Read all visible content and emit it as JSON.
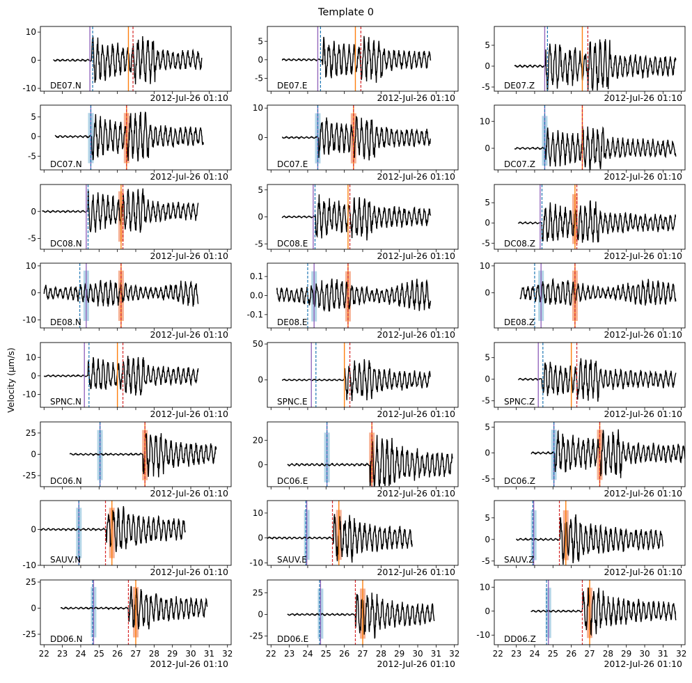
{
  "figure_title": "Template 0",
  "y_axis_label": "Velocity (μm/s)",
  "time_annotation": "2012-Jul-26 01:10",
  "colors": {
    "trace": "#000000",
    "p_pick": "#9467bd",
    "s_pick": "#ff7f0e",
    "p_detect": "#1f77b4",
    "s_detect": "#d62728",
    "p_window": "#a6cee3",
    "s_window": "#f4a582"
  },
  "chart_data": {
    "type": "line",
    "layout": "grid 8 rows x 3 columns of seismogram panels",
    "x_ticks": [
      "22",
      "23",
      "24",
      "25",
      "26",
      "27",
      "28",
      "29",
      "30",
      "31",
      "32"
    ],
    "x_range": [
      21.8,
      32.2
    ],
    "x_tick_labels_shown_on": "bottom row",
    "panels": [
      {
        "station": "DE07.N",
        "ylim": [
          -11,
          12
        ],
        "yticks": [
          "10",
          "0",
          "-10"
        ],
        "ytick_values": [
          10,
          0,
          -10
        ],
        "trace_start": 22.5,
        "trace_end": 30.6,
        "onset": 24.6,
        "amp": 9,
        "p_pick": 24.5,
        "p_det": 24.65,
        "s_pick": 26.6,
        "s_det": 26.85,
        "p_window": false,
        "s_window": false
      },
      {
        "station": "DE07.E",
        "ylim": [
          -8.5,
          9
        ],
        "yticks": [
          "5",
          "0",
          "-5"
        ],
        "ytick_values": [
          5,
          0,
          -5
        ],
        "trace_start": 22.6,
        "trace_end": 30.7,
        "onset": 24.8,
        "amp": 6.5,
        "p_pick": 24.55,
        "p_det": 24.7,
        "s_pick": 26.6,
        "s_det": 26.9,
        "p_window": false,
        "s_window": false
      },
      {
        "station": "DE07.Z",
        "ylim": [
          -6,
          9.5
        ],
        "yticks": [
          "5",
          "0",
          "-5"
        ],
        "ytick_values": [
          5,
          0,
          -5
        ],
        "trace_start": 22.9,
        "trace_end": 31.7,
        "onset": 24.6,
        "amp": 7,
        "p_pick": 24.55,
        "p_det": 24.7,
        "s_pick": 26.6,
        "s_det": 26.9,
        "p_window": false,
        "s_window": false
      },
      {
        "station": "DC07.N",
        "ylim": [
          -8.5,
          8
        ],
        "yticks": [
          "5",
          "0",
          "-5"
        ],
        "ytick_values": [
          5,
          0,
          -5
        ],
        "trace_start": 22.6,
        "trace_end": 30.7,
        "onset": 24.6,
        "amp": 6.5,
        "p_pick": 24.55,
        "p_det": 24.55,
        "s_pick": 26.5,
        "s_det": 26.5,
        "p_window": true,
        "s_window": true
      },
      {
        "station": "DC07.E",
        "ylim": [
          -11,
          11
        ],
        "yticks": [
          "10",
          "0"
        ],
        "ytick_values": [
          10,
          0
        ],
        "trace_start": 22.6,
        "trace_end": 30.7,
        "onset": 24.6,
        "amp": 8,
        "p_pick": 24.55,
        "p_det": 24.55,
        "s_pick": 26.5,
        "s_det": 26.5,
        "p_window": true,
        "s_window": true
      },
      {
        "station": "DC07.Z",
        "ylim": [
          -8,
          16
        ],
        "yticks": [
          "10",
          "0"
        ],
        "ytick_values": [
          10,
          0
        ],
        "trace_start": 22.9,
        "trace_end": 31.7,
        "onset": 24.6,
        "amp": 9,
        "p_pick": 24.55,
        "p_det": 24.55,
        "s_pick": 26.6,
        "s_det": 26.6,
        "p_window": true,
        "s_window": false
      },
      {
        "station": "DC08.N",
        "ylim": [
          -7,
          5
        ],
        "yticks": [
          "0",
          "-5"
        ],
        "ytick_values": [
          0,
          -5
        ],
        "trace_start": 21.9,
        "trace_end": 30.4,
        "onset": 24.4,
        "amp": 4.5,
        "p_pick": 24.3,
        "p_det": 24.4,
        "s_pick": 26.2,
        "s_det": 26.3,
        "p_window": false,
        "s_window": true
      },
      {
        "station": "DC08.E",
        "ylim": [
          -6,
          6
        ],
        "yticks": [
          "5",
          "0",
          "-5"
        ],
        "ytick_values": [
          5,
          0,
          -5
        ],
        "trace_start": 22.6,
        "trace_end": 30.7,
        "onset": 24.4,
        "amp": 4.5,
        "p_pick": 24.3,
        "p_det": 24.4,
        "s_pick": 26.2,
        "s_det": 26.3,
        "p_window": false,
        "s_window": false
      },
      {
        "station": "DC08.Z",
        "ylim": [
          -6.5,
          9.5
        ],
        "yticks": [
          "5",
          "0",
          "-5"
        ],
        "ytick_values": [
          5,
          0,
          -5
        ],
        "trace_start": 23.1,
        "trace_end": 31.7,
        "onset": 24.4,
        "amp": 6,
        "p_pick": 24.3,
        "p_det": 24.4,
        "s_pick": 26.2,
        "s_det": 26.3,
        "p_window": false,
        "s_window": true
      },
      {
        "station": "DE08.N",
        "ylim": [
          -13,
          11
        ],
        "yticks": [
          "10",
          "0",
          "-10"
        ],
        "ytick_values": [
          10,
          0,
          -10
        ],
        "trace_start": 22.0,
        "trace_end": 30.4,
        "onset": 22.0,
        "amp": 7,
        "p_pick": 24.3,
        "p_det": 23.95,
        "s_pick": 26.2,
        "s_det": 26.2,
        "p_window": true,
        "s_window": true
      },
      {
        "station": "DE08.E",
        "ylim": [
          -0.17,
          0.17
        ],
        "yticks": [
          "0.1",
          "0.0",
          "-0.1"
        ],
        "ytick_values": [
          0.1,
          0,
          -0.1
        ],
        "trace_start": 22.3,
        "trace_end": 30.7,
        "onset": 22.3,
        "amp": 0.12,
        "p_pick": 24.35,
        "p_det": 24.0,
        "s_pick": 26.2,
        "s_det": 26.2,
        "p_window": true,
        "s_window": true
      },
      {
        "station": "DE08.Z",
        "ylim": [
          -13,
          11
        ],
        "yticks": [
          "10",
          "0"
        ],
        "ytick_values": [
          10,
          0
        ],
        "trace_start": 23.2,
        "trace_end": 31.7,
        "onset": 23.2,
        "amp": 7,
        "p_pick": 24.35,
        "p_det": 24.0,
        "s_pick": 26.2,
        "s_det": 26.2,
        "p_window": true,
        "s_window": true
      },
      {
        "station": "SPNC.N",
        "ylim": [
          -17,
          18
        ],
        "yticks": [
          "10",
          "0",
          "-10"
        ],
        "ytick_values": [
          10,
          0,
          -10
        ],
        "trace_start": 22.0,
        "trace_end": 30.4,
        "onset": 24.4,
        "amp": 12,
        "p_pick": 24.2,
        "p_det": 24.45,
        "s_pick": 26.0,
        "s_det": 26.3,
        "p_window": false,
        "s_window": false
      },
      {
        "station": "SPNC.E",
        "ylim": [
          -38,
          52
        ],
        "yticks": [
          "50",
          "0"
        ],
        "ytick_values": [
          50,
          0
        ],
        "trace_start": 22.6,
        "trace_end": 30.7,
        "onset": 26.0,
        "amp": 30,
        "p_pick": 24.2,
        "p_det": 24.45,
        "s_pick": 26.0,
        "s_det": 26.3,
        "p_window": false,
        "s_window": false
      },
      {
        "station": "SPNC.Z",
        "ylim": [
          -6.5,
          8.5
        ],
        "yticks": [
          "5",
          "0",
          "-5"
        ],
        "ytick_values": [
          5,
          0,
          -5
        ],
        "trace_start": 23.1,
        "trace_end": 31.7,
        "onset": 24.4,
        "amp": 5.5,
        "p_pick": 24.2,
        "p_det": 24.45,
        "s_pick": 26.0,
        "s_det": 26.3,
        "p_window": false,
        "s_window": false
      },
      {
        "station": "DC06.N",
        "ylim": [
          -38,
          38
        ],
        "yticks": [
          "25",
          "0",
          "-25"
        ],
        "ytick_values": [
          25,
          0,
          -25
        ],
        "trace_start": 23.4,
        "trace_end": 31.4,
        "onset": 27.4,
        "amp": 28,
        "p_pick": 25.05,
        "p_det": 25.05,
        "s_pick": 27.5,
        "s_det": 27.5,
        "p_window": true,
        "s_window": true
      },
      {
        "station": "DC06.E",
        "ylim": [
          -18,
          35
        ],
        "yticks": [
          "20",
          "0"
        ],
        "ytick_values": [
          20,
          0
        ],
        "trace_start": 22.9,
        "trace_end": 31.9,
        "onset": 27.4,
        "amp": 25,
        "p_pick": 25.05,
        "p_det": 25.05,
        "s_pick": 27.5,
        "s_det": 27.5,
        "p_window": true,
        "s_window": true
      },
      {
        "station": "DC06.Z",
        "ylim": [
          -6.5,
          6
        ],
        "yticks": [
          "5",
          "0",
          "-5"
        ],
        "ytick_values": [
          5,
          0,
          -5
        ],
        "trace_start": 23.8,
        "trace_end": 32.2,
        "onset": 25.1,
        "amp": 5,
        "p_pick": 25.05,
        "p_det": 25.05,
        "s_pick": 27.55,
        "s_det": 27.55,
        "p_window": true,
        "s_window": true
      },
      {
        "station": "SAUV.N",
        "ylim": [
          -10,
          8
        ],
        "yticks": [
          "0",
          "-10"
        ],
        "ytick_values": [
          0,
          -10
        ],
        "trace_start": 21.8,
        "trace_end": 29.7,
        "onset": 25.4,
        "amp": 7,
        "p_pick": 23.9,
        "p_det": 23.9,
        "s_pick": 25.7,
        "s_det": 25.35,
        "p_window": true,
        "s_window": true
      },
      {
        "station": "SAUV.E",
        "ylim": [
          -11,
          15
        ],
        "yticks": [
          "10",
          "0",
          "-10"
        ],
        "ytick_values": [
          10,
          0,
          -10
        ],
        "trace_start": 21.8,
        "trace_end": 29.7,
        "onset": 25.4,
        "amp": 10,
        "p_pick": 23.95,
        "p_det": 23.9,
        "s_pick": 25.7,
        "s_det": 25.35,
        "p_window": true,
        "s_window": true
      },
      {
        "station": "SAUV.Z",
        "ylim": [
          -6,
          9
        ],
        "yticks": [
          "5",
          "0",
          "-5"
        ],
        "ytick_values": [
          5,
          0,
          -5
        ],
        "trace_start": 23.0,
        "trace_end": 31.0,
        "onset": 25.4,
        "amp": 6,
        "p_pick": 23.95,
        "p_det": 23.9,
        "s_pick": 25.7,
        "s_det": 25.35,
        "p_window": true,
        "s_window": true
      },
      {
        "station": "DD06.N",
        "ylim": [
          -35,
          27
        ],
        "yticks": [
          "25",
          "0",
          "-25"
        ],
        "ytick_values": [
          25,
          0,
          -25
        ],
        "trace_start": 22.9,
        "trace_end": 30.9,
        "onset": 26.6,
        "amp": 22,
        "p_pick": 24.7,
        "p_det": 24.65,
        "s_pick": 27.0,
        "s_det": 26.6,
        "p_window": true,
        "s_window": true
      },
      {
        "station": "DD06.E",
        "ylim": [
          -35,
          40
        ],
        "yticks": [
          "25",
          "0",
          "-25"
        ],
        "ytick_values": [
          25,
          0,
          -25
        ],
        "trace_start": 22.9,
        "trace_end": 30.9,
        "onset": 26.6,
        "amp": 28,
        "p_pick": 24.7,
        "p_det": 24.65,
        "s_pick": 27.0,
        "s_det": 26.6,
        "p_window": true,
        "s_window": true
      },
      {
        "station": "DD06.Z",
        "ylim": [
          -14,
          13
        ],
        "yticks": [
          "10",
          "0",
          "-10"
        ],
        "ytick_values": [
          10,
          0,
          -10
        ],
        "trace_start": 23.8,
        "trace_end": 31.7,
        "onset": 26.6,
        "amp": 10,
        "p_pick": 24.75,
        "p_det": 24.65,
        "s_pick": 27.0,
        "s_det": 26.6,
        "p_window": true,
        "s_window": true
      }
    ]
  }
}
